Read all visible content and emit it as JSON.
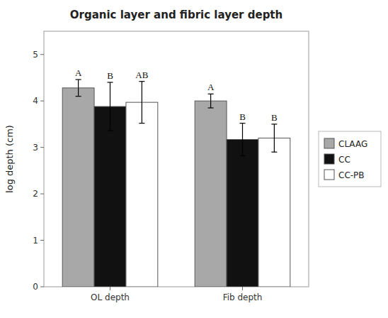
{
  "chart_data": {
    "type": "bar",
    "title": "Organic layer and fibric layer depth",
    "y_label": "log depth (cm)",
    "categories": [
      "OL depth",
      "Fib depth"
    ],
    "series": [
      {
        "name": "CLAAG",
        "color": "#a8a8a8",
        "values": [
          4.28,
          4.0
        ],
        "errors": [
          0.18,
          0.15
        ],
        "letters": [
          "A",
          "A"
        ]
      },
      {
        "name": "CC",
        "color": "#111111",
        "values": [
          3.88,
          3.17
        ],
        "errors": [
          0.52,
          0.35
        ],
        "letters": [
          "B",
          "B"
        ]
      },
      {
        "name": "CC-PB",
        "color": "#ffffff",
        "values": [
          3.97,
          3.2
        ],
        "errors": [
          0.45,
          0.3
        ],
        "letters": [
          "AB",
          "B"
        ]
      }
    ],
    "ylim": [
      0,
      5.5
    ],
    "yticks": [
      0,
      1,
      2,
      3,
      4,
      5
    ],
    "grid": false,
    "legend": "right"
  }
}
